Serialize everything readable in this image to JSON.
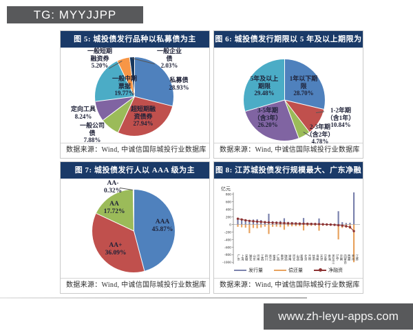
{
  "header": {
    "text": "TG: MYYJJPP"
  },
  "watermark": {
    "text": "www.zh-leyu-apps.com"
  },
  "source_line": "数据来源：Wind, 中诚信国际城投行业数据库",
  "colors": {
    "title_bar": "#1a3a68",
    "header_box": "#58595b"
  },
  "chart_data": [
    {
      "id": "fig5",
      "type": "pie",
      "title": "图 5: 城投债发行品种以私募债为主",
      "source": "数据来源：Wind, 中诚信国际城投行业数据库",
      "slices": [
        {
          "name": "私募债",
          "value": 28.93,
          "color": "#4f81bd",
          "label": "私募债\n28.93%"
        },
        {
          "name": "超短期融资债券",
          "value": 27.94,
          "color": "#c0504d",
          "label": "超短期融\n资债券\n27.94%"
        },
        {
          "name": "一般公司债",
          "value": 7.88,
          "color": "#9bbb59",
          "label": "一般公司\n债\n7.88%"
        },
        {
          "name": "定向工具",
          "value": 8.24,
          "color": "#8064a2",
          "label": "定向工具\n8.24%"
        },
        {
          "name": "一般中期票据",
          "value": 19.77,
          "color": "#4bacc6",
          "label": "一般中期\n票据\n19.77%"
        },
        {
          "name": "一般短期融资券",
          "value": 5.2,
          "color": "#f79646",
          "label": "一般短期\n融资券\n5.20%"
        },
        {
          "name": "一般企业债",
          "value": 2.03,
          "color": "#17375e",
          "label": "一般企业\n债\n2.03%"
        }
      ]
    },
    {
      "id": "fig6",
      "type": "pie",
      "title": "图 6: 城投债发行期限以 5 年及以上期限为主",
      "source": "数据来源：Wind, 中诚信国际城投行业数据库",
      "slices": [
        {
          "name": "1年以下期限",
          "value": 28.7,
          "color": "#4f81bd",
          "label": "1年以下期\n限\n28.70%"
        },
        {
          "name": "1-2年期（含1年）",
          "value": 10.84,
          "color": "#c0504d",
          "label": "1-2年期\n（含1年）\n10.84%"
        },
        {
          "name": "2-3年期（含2年）",
          "value": 4.78,
          "color": "#9bbb59",
          "label": "2-3年期\n（含2年）\n4.78%"
        },
        {
          "name": "3-5年期（含3年）",
          "value": 26.2,
          "color": "#8064a2",
          "label": "3-5年期\n（含3年）\n26.20%"
        },
        {
          "name": "5年及以上期限",
          "value": 29.48,
          "color": "#4bacc6",
          "label": "5年及以上\n期限\n29.48%"
        }
      ]
    },
    {
      "id": "fig7",
      "type": "pie",
      "title": "图 7: 城投债发行人以 AAA 级为主",
      "source": "数据来源：Wind, 中诚信国际城投行业数据库",
      "slices": [
        {
          "name": "AAA",
          "value": 45.87,
          "color": "#4f81bd",
          "label": "AAA\n45.87%"
        },
        {
          "name": "AA+",
          "value": 36.09,
          "color": "#c0504d",
          "label": "AA+\n36.09%"
        },
        {
          "name": "AA",
          "value": 17.72,
          "color": "#9bbb59",
          "label": "AA\n17.72%"
        },
        {
          "name": "AA-",
          "value": 0.32,
          "color": "#8064a2",
          "label": "AA-\n0.32%"
        }
      ]
    },
    {
      "id": "fig8",
      "type": "bar",
      "title": "图 8: 江苏城投债发行规模最大、广东净融资额居首",
      "source": "数据来源：Wind, 中诚信国际城投行业数据库",
      "unit": "亿元",
      "ylim": [
        -1000,
        900
      ],
      "yticks": [
        800,
        600,
        400,
        200,
        0,
        -200,
        -400,
        -600,
        -800,
        -1000
      ],
      "legend_position": "bottom",
      "categories": [
        "广东",
        "上海",
        "安徽",
        "湖北",
        "山东",
        "河南",
        "江西",
        "四川",
        "浙江",
        "福建",
        "广西",
        "重庆",
        "陕西",
        "湖南",
        "河北",
        "山西",
        "新疆",
        "北京",
        "吉林",
        "甘肃",
        "海南",
        "天津",
        "宁夏",
        "青海",
        "黑龙江",
        "辽宁",
        "云南",
        "内蒙古",
        "西藏",
        "贵州",
        "江苏"
      ],
      "series": [
        {
          "name": "发行量",
          "type": "bar",
          "color": "#7b82ad",
          "values": [
            170,
            155,
            130,
            120,
            132,
            140,
            118,
            92,
            285,
            88,
            80,
            95,
            165,
            70,
            66,
            60,
            56,
            172,
            50,
            46,
            40,
            160,
            34,
            30,
            26,
            20,
            352,
            62,
            40,
            46,
            856
          ]
        },
        {
          "name": "偿还量",
          "type": "bar",
          "color": "#e8a25e",
          "values": [
            -62,
            -75,
            -85,
            -230,
            -92,
            -102,
            -82,
            -58,
            -252,
            -62,
            -58,
            -70,
            -140,
            -52,
            -48,
            -46,
            -42,
            -158,
            -42,
            -36,
            -32,
            -165,
            -33,
            -31,
            -29,
            -26,
            -396,
            -92,
            -86,
            -116,
            -1000
          ]
        },
        {
          "name": "净融资",
          "type": "line",
          "color": "#8c3232",
          "values": [
            152,
            132,
            110,
            96,
            86,
            76,
            70,
            60,
            54,
            48,
            44,
            40,
            35,
            30,
            28,
            25,
            22,
            20,
            17,
            14,
            12,
            9,
            5,
            0,
            -4,
            -9,
            -20,
            -30,
            -46,
            -70,
            -176
          ]
        }
      ]
    }
  ]
}
